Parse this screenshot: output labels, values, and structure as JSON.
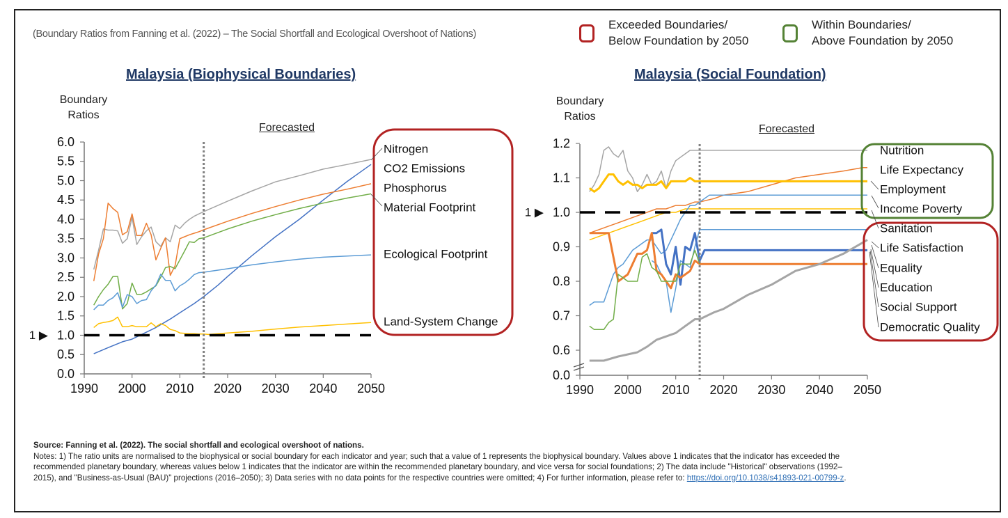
{
  "header": {
    "subtitle": "(Boundary Ratios from Fanning et al. (2022) – The Social Shortfall and Ecological Overshoot of Nations)",
    "legend": [
      {
        "line1": "Exceeded  Boundaries/",
        "line2": "Below Foundation by 2050",
        "color": "#b22222"
      },
      {
        "line1": "Within Boundaries/",
        "line2": "Above Foundation by 2050",
        "color": "#548235"
      }
    ]
  },
  "marker_label": "1 ▶",
  "chart_data": [
    {
      "type": "line",
      "title": "Malaysia (Biophysical Boundaries)",
      "ylabel": "Boundary Ratios",
      "xlabel": "",
      "annotation": "Forecasted",
      "forecast_start": 2015,
      "boundary_value": 1.0,
      "xlim": [
        1990,
        2050
      ],
      "ylim": [
        0,
        6
      ],
      "xticks": [
        "1990",
        "2000",
        "2010",
        "2020",
        "2030",
        "2040",
        "2050"
      ],
      "yticks": [
        "0.0",
        "0.5",
        "1.0",
        "1.5",
        "2.0",
        "2.5",
        "3.0",
        "3.5",
        "4.0",
        "4.5",
        "5.0",
        "5.5",
        "6.0"
      ],
      "grid": false,
      "legend_group": {
        "status": "exceeded",
        "labels": [
          "Nitrogen",
          "CO2 Emissions",
          "Phosphorus",
          "Material Footprint",
          "Ecological Footprint",
          "Land-System Change"
        ]
      },
      "series": [
        {
          "name": "Nitrogen",
          "color": "#a5a5a5",
          "width": 1.5,
          "x": [
            1992,
            1993,
            1994,
            1995,
            1996,
            1997,
            1998,
            1999,
            2000,
            2001,
            2002,
            2003,
            2004,
            2005,
            2006,
            2007,
            2008,
            2009,
            2010,
            2011,
            2012,
            2013,
            2014,
            2015,
            2020,
            2025,
            2030,
            2035,
            2040,
            2045,
            2050
          ],
          "y": [
            2.7,
            3.2,
            3.75,
            3.72,
            3.72,
            3.7,
            3.38,
            3.5,
            4.05,
            3.35,
            3.55,
            3.7,
            3.8,
            3.42,
            3.3,
            3.52,
            3.42,
            3.85,
            3.76,
            3.9,
            4.0,
            4.08,
            4.14,
            4.2,
            4.47,
            4.73,
            4.97,
            5.13,
            5.3,
            5.42,
            5.55
          ]
        },
        {
          "name": "CO2 Emissions",
          "color": "#4472c4",
          "width": 1.5,
          "x": [
            1992,
            1995,
            1998,
            2000,
            2002,
            2005,
            2008,
            2010,
            2013,
            2015,
            2018,
            2020,
            2025,
            2030,
            2035,
            2040,
            2045,
            2050
          ],
          "y": [
            0.52,
            0.68,
            0.83,
            0.9,
            1.02,
            1.2,
            1.42,
            1.58,
            1.82,
            2.0,
            2.3,
            2.52,
            3.05,
            3.55,
            4.0,
            4.5,
            4.98,
            5.42
          ]
        },
        {
          "name": "Phosphorus",
          "color": "#ed7d31",
          "width": 1.5,
          "x": [
            1992,
            1993,
            1994,
            1995,
            1996,
            1997,
            1998,
            1999,
            2000,
            2001,
            2002,
            2003,
            2004,
            2005,
            2006,
            2007,
            2008,
            2009,
            2010,
            2011,
            2012,
            2013,
            2014,
            2015,
            2020,
            2025,
            2030,
            2035,
            2040,
            2045,
            2050
          ],
          "y": [
            2.4,
            3.1,
            3.5,
            4.42,
            4.28,
            4.18,
            3.6,
            3.68,
            4.14,
            3.58,
            3.58,
            3.9,
            3.6,
            2.95,
            3.25,
            3.52,
            2.55,
            2.8,
            3.5,
            3.55,
            3.6,
            3.64,
            3.68,
            3.73,
            3.95,
            4.15,
            4.33,
            4.5,
            4.65,
            4.78,
            4.92
          ]
        },
        {
          "name": "Material Footprint",
          "color": "#70ad47",
          "width": 1.5,
          "x": [
            1992,
            1993,
            1994,
            1995,
            1996,
            1997,
            1998,
            1999,
            2000,
            2001,
            2002,
            2003,
            2004,
            2005,
            2006,
            2007,
            2008,
            2009,
            2010,
            2011,
            2012,
            2013,
            2014,
            2015,
            2020,
            2025,
            2030,
            2035,
            2040,
            2045,
            2050
          ],
          "y": [
            1.78,
            2.0,
            2.18,
            2.32,
            2.52,
            2.52,
            1.68,
            1.82,
            2.35,
            2.06,
            2.06,
            2.12,
            2.2,
            2.28,
            2.5,
            2.75,
            2.78,
            2.72,
            2.95,
            3.18,
            3.42,
            3.4,
            3.5,
            3.52,
            3.75,
            3.95,
            4.12,
            4.28,
            4.42,
            4.55,
            4.66
          ]
        },
        {
          "name": "Ecological Footprint",
          "color": "#5b9bd5",
          "width": 1.5,
          "x": [
            1992,
            1993,
            1994,
            1995,
            1996,
            1997,
            1998,
            1999,
            2000,
            2001,
            2002,
            2003,
            2004,
            2005,
            2006,
            2007,
            2008,
            2009,
            2010,
            2011,
            2012,
            2013,
            2014,
            2015,
            2020,
            2025,
            2030,
            2035,
            2040,
            2045,
            2050
          ],
          "y": [
            1.66,
            1.78,
            1.78,
            1.9,
            1.97,
            2.1,
            1.72,
            2.05,
            2.0,
            1.82,
            1.9,
            1.92,
            2.15,
            2.3,
            2.58,
            2.42,
            2.42,
            2.15,
            2.28,
            2.35,
            2.45,
            2.57,
            2.62,
            2.63,
            2.72,
            2.82,
            2.9,
            2.97,
            3.02,
            3.05,
            3.08
          ]
        },
        {
          "name": "Land-System Change",
          "color": "#ffc000",
          "width": 1.5,
          "x": [
            1992,
            1993,
            1994,
            1995,
            1996,
            1997,
            1998,
            1999,
            2000,
            2001,
            2002,
            2003,
            2004,
            2005,
            2006,
            2007,
            2008,
            2009,
            2010,
            2011,
            2012,
            2013,
            2014,
            2015,
            2016,
            2020,
            2025,
            2030,
            2035,
            2040,
            2045,
            2050
          ],
          "y": [
            1.2,
            1.3,
            1.33,
            1.35,
            1.38,
            1.47,
            1.22,
            1.22,
            1.25,
            1.22,
            1.22,
            1.22,
            1.32,
            1.22,
            1.3,
            1.25,
            1.15,
            1.12,
            1.06,
            1.05,
            1.04,
            1.04,
            1.03,
            1.03,
            1.02,
            1.06,
            1.1,
            1.16,
            1.21,
            1.25,
            1.29,
            1.33
          ]
        }
      ]
    },
    {
      "type": "line",
      "title": "Malaysia (Social Foundation)",
      "ylabel": "Boundary Ratios",
      "xlabel": "",
      "annotation": "Forecasted",
      "forecast_start": 2015,
      "boundary_value": 1.0,
      "xlim": [
        1990,
        2050
      ],
      "ylim": [
        0.55,
        1.2
      ],
      "axis_break": "0.0 → 0.6",
      "xticks": [
        "1990",
        "2000",
        "2010",
        "2020",
        "2030",
        "2040",
        "2050"
      ],
      "yticks": [
        "0.0",
        "0.6",
        "0.7",
        "0.8",
        "0.9",
        "1.0",
        "1.1",
        "1.2"
      ],
      "grid": false,
      "legend_groups": [
        {
          "status": "within",
          "labels": [
            "Nutrition",
            "Life Expectancy",
            "Employment",
            "Income Poverty"
          ]
        },
        {
          "status": "exceeded",
          "labels": [
            "Sanitation",
            "Life Satisfaction",
            "Equality",
            "Education",
            "Social Support",
            "Democratic Quality"
          ]
        }
      ],
      "series": [
        {
          "name": "Nutrition",
          "color": "#a5a5a5",
          "width": 1.5,
          "x": [
            1992,
            1993,
            1994,
            1995,
            1996,
            1997,
            1998,
            1999,
            2000,
            2001,
            2002,
            2003,
            2004,
            2005,
            2006,
            2007,
            2008,
            2009,
            2010,
            2011,
            2012,
            2013,
            2014,
            2015,
            2050
          ],
          "y": [
            1.06,
            1.08,
            1.11,
            1.18,
            1.19,
            1.17,
            1.16,
            1.18,
            1.12,
            1.1,
            1.06,
            1.08,
            1.11,
            1.08,
            1.09,
            1.12,
            1.07,
            1.12,
            1.15,
            1.16,
            1.17,
            1.18,
            1.18,
            1.18,
            1.18
          ]
        },
        {
          "name": "Life Expectancy",
          "color": "#ed7d31",
          "width": 1.5,
          "x": [
            1992,
            1994,
            1996,
            1998,
            2000,
            2002,
            2004,
            2006,
            2008,
            2010,
            2012,
            2014,
            2015,
            2018,
            2020,
            2025,
            2030,
            2035,
            2040,
            2045,
            2049,
            2050
          ],
          "y": [
            0.94,
            0.95,
            0.96,
            0.97,
            0.98,
            0.99,
            1.0,
            1.01,
            1.01,
            1.02,
            1.02,
            1.03,
            1.03,
            1.04,
            1.05,
            1.06,
            1.08,
            1.1,
            1.11,
            1.12,
            1.13,
            1.13
          ]
        },
        {
          "name": "Employment",
          "color": "#ffc000",
          "width": 3,
          "x": [
            1992,
            1993,
            1994,
            1995,
            1996,
            1997,
            1998,
            1999,
            2000,
            2001,
            2002,
            2003,
            2004,
            2005,
            2006,
            2007,
            2008,
            2009,
            2010,
            2011,
            2012,
            2013,
            2014,
            2015,
            2050
          ],
          "y": [
            1.07,
            1.06,
            1.07,
            1.09,
            1.11,
            1.11,
            1.09,
            1.08,
            1.09,
            1.08,
            1.08,
            1.07,
            1.08,
            1.08,
            1.08,
            1.09,
            1.07,
            1.09,
            1.09,
            1.09,
            1.09,
            1.1,
            1.09,
            1.09,
            1.09
          ]
        },
        {
          "name": "Income Poverty",
          "color": "#ffc000",
          "width": 1.5,
          "x": [
            1992,
            1994,
            1996,
            1998,
            2000,
            2002,
            2004,
            2006,
            2008,
            2010,
            2012,
            2014,
            2015,
            2050
          ],
          "y": [
            0.92,
            0.93,
            0.94,
            0.95,
            0.96,
            0.97,
            0.98,
            0.99,
            1.0,
            1.0,
            1.01,
            1.01,
            1.01,
            1.01
          ]
        },
        {
          "name": "Sanitation",
          "color": "#5b9bd5",
          "width": 1.5,
          "x": [
            1992,
            1993,
            1994,
            1995,
            1996,
            1997,
            1998,
            1999,
            2000,
            2001,
            2002,
            2003,
            2004,
            2005,
            2006,
            2007,
            2008,
            2009,
            2010,
            2011,
            2012,
            2013,
            2014,
            2015,
            2016,
            2017,
            2050
          ],
          "y": [
            0.73,
            0.74,
            0.74,
            0.74,
            0.78,
            0.82,
            0.84,
            0.85,
            0.87,
            0.89,
            0.9,
            0.91,
            0.92,
            0.92,
            0.9,
            0.88,
            0.89,
            0.92,
            0.95,
            0.98,
            1.0,
            1.02,
            1.02,
            1.03,
            1.04,
            1.05,
            1.05
          ]
        },
        {
          "name": "Life Satisfaction",
          "color": "#5b9bd5",
          "width": 1.5,
          "x": [
            2005,
            2006,
            2007,
            2008,
            2009,
            2010,
            2011,
            2012,
            2013,
            2014,
            2015,
            2050
          ],
          "y": [
            0.86,
            0.85,
            0.82,
            0.8,
            0.71,
            0.78,
            0.86,
            0.85,
            0.84,
            0.9,
            0.95,
            0.95
          ]
        },
        {
          "name": "Equality",
          "color": "#4472c4",
          "width": 3,
          "x": [
            2005,
            2006,
            2007,
            2008,
            2009,
            2010,
            2011,
            2012,
            2013,
            2014,
            2015,
            2016,
            2050
          ],
          "y": [
            0.94,
            0.94,
            0.95,
            0.85,
            0.82,
            0.9,
            0.79,
            0.9,
            0.89,
            0.94,
            0.86,
            0.89,
            0.89
          ]
        },
        {
          "name": "Education",
          "color": "#ed7d31",
          "width": 3,
          "x": [
            1992,
            1993,
            1994,
            1995,
            1996,
            1997,
            1998,
            1999,
            2000,
            2001,
            2002,
            2003,
            2004,
            2005,
            2006,
            2007,
            2008,
            2009,
            2010,
            2011,
            2012,
            2013,
            2014,
            2015,
            2050
          ],
          "y": [
            0.94,
            0.94,
            0.94,
            0.94,
            0.94,
            0.87,
            0.8,
            0.81,
            0.82,
            0.85,
            0.88,
            0.88,
            0.89,
            0.94,
            0.83,
            0.82,
            0.8,
            0.78,
            0.82,
            0.81,
            0.82,
            0.83,
            0.86,
            0.85,
            0.85
          ]
        },
        {
          "name": "Social Support",
          "color": "#a5a5a5",
          "width": 3,
          "x": [
            1992,
            1995,
            1998,
            2000,
            2002,
            2004,
            2006,
            2008,
            2010,
            2012,
            2014,
            2015,
            2018,
            2020,
            2025,
            2030,
            2035,
            2040,
            2045,
            2050
          ],
          "y": [
            0.55,
            0.55,
            0.57,
            0.58,
            0.59,
            0.61,
            0.63,
            0.64,
            0.65,
            0.67,
            0.69,
            0.69,
            0.71,
            0.72,
            0.76,
            0.79,
            0.83,
            0.85,
            0.88,
            0.92
          ]
        },
        {
          "name": "Democratic Quality",
          "color": "#70ad47",
          "width": 1.5,
          "x": [
            1992,
            1993,
            1994,
            1995,
            1996,
            1997,
            1998,
            1999,
            2000,
            2001,
            2002,
            2003,
            2004,
            2005,
            2006,
            2007,
            2008,
            2009,
            2010,
            2011,
            2012,
            2013,
            2014,
            2015
          ],
          "y": [
            0.67,
            0.66,
            0.66,
            0.66,
            0.68,
            0.69,
            0.82,
            0.81,
            0.8,
            0.8,
            0.8,
            0.87,
            0.88,
            0.84,
            0.83,
            0.8,
            0.8,
            0.8,
            0.8,
            0.85,
            0.85,
            0.85,
            0.89,
            0.85
          ]
        }
      ]
    }
  ],
  "footer": {
    "source": "Source: Fanning et al. (2022). The social shortfall and ecological overshoot of nations.",
    "notes_text": "Notes: 1) The ratio units are normalised to the biophysical or social boundary for each indicator and year; such that a value of 1 represents the biophysical boundary. Values above 1 indicates that the indicator has exceeded the recommended planetary boundary, whereas values below 1 indicates that the indicator are within the recommended planetary boundary, and vice versa for social foundations; 2) The data include \"Historical\" observations (1992–2015), and \"Business-as-Usual (BAU)\" projections (2016–2050); 3) Data series with no data points for the respective countries were omitted; 4)  For further information, please refer to: ",
    "link_text": "https://doi.org/10.1038/s41893-021-00799-z",
    "link_suffix": "."
  }
}
